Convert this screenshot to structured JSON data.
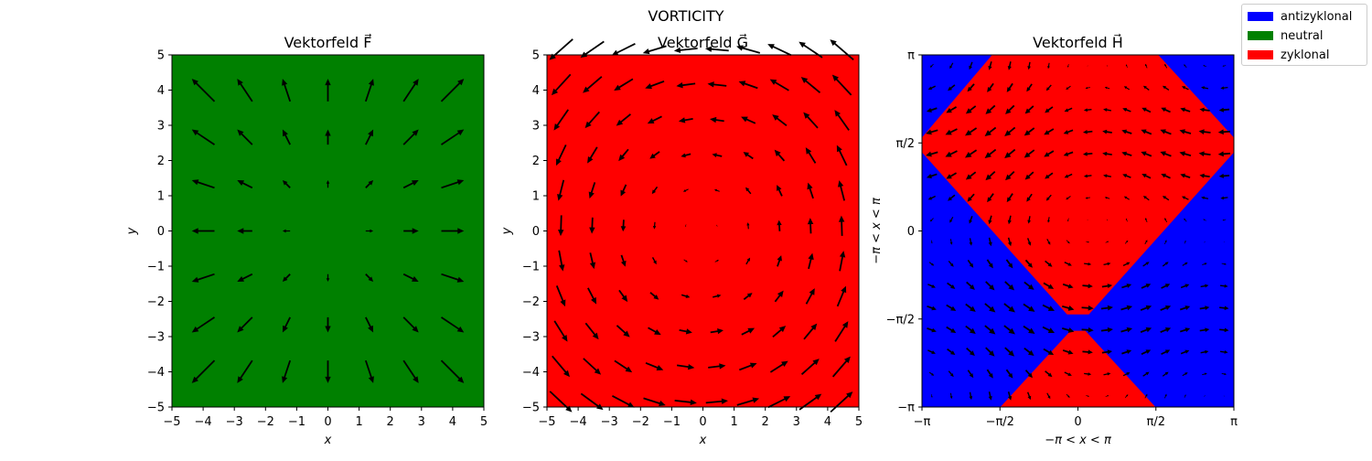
{
  "suptitle": "VORTICITY",
  "legend": {
    "position": "top-right",
    "items": [
      {
        "label": "antizyklonal",
        "color": "#0000ff"
      },
      {
        "label": "neutral",
        "color": "#008000"
      },
      {
        "label": "zyklonal",
        "color": "#ff0000"
      }
    ]
  },
  "chart_data": [
    {
      "type": "quiver",
      "title": "Vektorfeld F⃗",
      "xlabel": "x",
      "ylabel": "y",
      "xlim": [
        -5,
        5
      ],
      "ylim": [
        -5,
        5
      ],
      "xticks": [
        "−5",
        "−4",
        "−3",
        "−2",
        "−1",
        "0",
        "1",
        "2",
        "3",
        "4",
        "5"
      ],
      "yticks": [
        "−5",
        "−4",
        "−3",
        "−2",
        "−1",
        "0",
        "1",
        "2",
        "3",
        "4",
        "5"
      ],
      "background": "neutral",
      "background_color": "#008000",
      "field": {
        "u": "x",
        "v": "y",
        "grid": [
          -4,
          4,
          8
        ]
      },
      "vorticity": 0
    },
    {
      "type": "quiver",
      "title": "Vektorfeld G⃗",
      "xlabel": "x",
      "ylabel": "y",
      "xlim": [
        -5,
        5
      ],
      "ylim": [
        -5,
        5
      ],
      "xticks": [
        "−5",
        "−4",
        "−3",
        "−2",
        "−1",
        "0",
        "1",
        "2",
        "3",
        "4",
        "5"
      ],
      "yticks": [
        "−5",
        "−4",
        "−3",
        "−2",
        "−1",
        "0",
        "1",
        "2",
        "3",
        "4",
        "5"
      ],
      "background": "zyklonal",
      "background_color": "#ff0000",
      "field": {
        "u": "-y",
        "v": "x",
        "grid": [
          -5,
          5,
          10
        ]
      },
      "vorticity": 2
    },
    {
      "type": "quiver",
      "title": "Vektorfeld H⃗",
      "xlabel": "−π < x < π",
      "ylabel": "−π < x < π",
      "xlim": [
        -3.1416,
        3.1416
      ],
      "ylim": [
        -3.1416,
        3.1416
      ],
      "xticks": [
        "−π",
        "−π/2",
        "0",
        "π/2",
        "π"
      ],
      "yticks": [
        "−π",
        "−π/2",
        "0",
        "π/2",
        "π"
      ],
      "background": "mixed",
      "regions": [
        {
          "label": "zyklonal",
          "polygon": [
            [
              -1.73,
              3.14
            ],
            [
              1.62,
              3.14
            ],
            [
              3.14,
              1.67
            ],
            [
              3.14,
              1.4
            ],
            [
              0.22,
              -1.49
            ],
            [
              -0.22,
              -1.49
            ],
            [
              -3.14,
              1.4
            ],
            [
              -3.14,
              1.67
            ]
          ]
        },
        {
          "label": "zyklonal",
          "polygon": [
            [
              -1.56,
              -3.14
            ],
            [
              1.56,
              -3.14
            ],
            [
              0.15,
              -1.78
            ],
            [
              -0.15,
              -1.78
            ]
          ]
        }
      ],
      "other_region": "antizyklonal"
    }
  ]
}
